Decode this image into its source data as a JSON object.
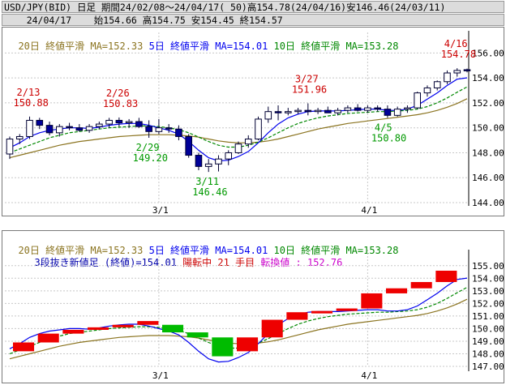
{
  "header": {
    "line1": "USD/JPY(BID) 日足 期間24/02/08～24/04/17( 50)高154.78(24/04/16)安146.46(24/03/11)",
    "line2": "    24/04/17    始154.66 高154.75 安154.45 終154.57"
  },
  "colors": {
    "ma20": "#8b7420",
    "ma5": "#0000ee",
    "ma10": "#008800",
    "candle_up": "#ffffff",
    "candle_down": "#000099",
    "brick_up": "#ee0000",
    "brick_down": "#00bb00",
    "annot_high": "#cc0000",
    "annot_low": "#009900",
    "reversal": "#cc00cc"
  },
  "top_legend": [
    {
      "text": "20日 終値平滑 MA=152.33",
      "color_key": "ma20"
    },
    {
      "text": "5日 終値平滑 MA=154.01",
      "color_key": "ma5"
    },
    {
      "text": "10日 終値平滑 MA=153.28",
      "color_key": "ma10"
    }
  ],
  "bottom_legend": [
    {
      "text": "20日 終値平滑 MA=152.33",
      "color_key": "ma20"
    },
    {
      "text": "5日 終値平滑 MA=154.01",
      "color_key": "ma5"
    },
    {
      "text": "10日 終値平滑 MA=153.28",
      "color_key": "ma10"
    }
  ],
  "bottom_info": {
    "part1": "3段抜き新値足 (終値)=154.01",
    "part2": "陽転中 21 手目",
    "part3": "転換値 : 152.76"
  },
  "chart_data": [
    {
      "type": "candlestick",
      "title": "USD/JPY(BID) 日足",
      "ylim": [
        144,
        157
      ],
      "yticks": [
        144.0,
        146.0,
        148.0,
        150.0,
        152.0,
        154.0,
        156.0
      ],
      "xtick_labels": [
        {
          "label": "3/1",
          "index": 15
        },
        {
          "label": "4/1",
          "index": 36
        }
      ],
      "candles": [
        {
          "o": 147.9,
          "h": 149.3,
          "l": 147.5,
          "c": 149.1
        },
        {
          "o": 149.1,
          "h": 149.5,
          "l": 148.7,
          "c": 149.3
        },
        {
          "o": 149.3,
          "h": 150.9,
          "l": 149.1,
          "c": 150.6
        },
        {
          "o": 150.6,
          "h": 150.8,
          "l": 149.9,
          "c": 150.2
        },
        {
          "o": 150.2,
          "h": 150.5,
          "l": 149.4,
          "c": 149.6
        },
        {
          "o": 149.6,
          "h": 150.3,
          "l": 149.3,
          "c": 150.1
        },
        {
          "o": 150.1,
          "h": 150.4,
          "l": 149.8,
          "c": 150.0
        },
        {
          "o": 150.0,
          "h": 150.3,
          "l": 149.7,
          "c": 149.8
        },
        {
          "o": 149.8,
          "h": 150.3,
          "l": 149.6,
          "c": 150.1
        },
        {
          "o": 150.1,
          "h": 150.5,
          "l": 149.9,
          "c": 150.3
        },
        {
          "o": 150.3,
          "h": 150.8,
          "l": 150.0,
          "c": 150.6
        },
        {
          "o": 150.6,
          "h": 150.83,
          "l": 150.1,
          "c": 150.4
        },
        {
          "o": 150.4,
          "h": 150.7,
          "l": 150.0,
          "c": 150.5
        },
        {
          "o": 150.5,
          "h": 150.8,
          "l": 150.0,
          "c": 150.1
        },
        {
          "o": 150.1,
          "h": 150.6,
          "l": 149.2,
          "c": 149.7
        },
        {
          "o": 149.7,
          "h": 150.7,
          "l": 149.5,
          "c": 150.0
        },
        {
          "o": 150.0,
          "h": 150.3,
          "l": 149.6,
          "c": 149.9
        },
        {
          "o": 149.9,
          "h": 150.2,
          "l": 149.0,
          "c": 149.3
        },
        {
          "o": 149.3,
          "h": 149.5,
          "l": 147.6,
          "c": 147.8
        },
        {
          "o": 147.8,
          "h": 148.0,
          "l": 146.6,
          "c": 146.9
        },
        {
          "o": 146.9,
          "h": 147.5,
          "l": 146.46,
          "c": 147.1
        },
        {
          "o": 147.1,
          "h": 147.8,
          "l": 146.5,
          "c": 147.5
        },
        {
          "o": 147.5,
          "h": 148.2,
          "l": 147.0,
          "c": 148.0
        },
        {
          "o": 148.0,
          "h": 148.9,
          "l": 147.9,
          "c": 148.7
        },
        {
          "o": 148.7,
          "h": 149.4,
          "l": 148.4,
          "c": 149.1
        },
        {
          "o": 149.1,
          "h": 150.9,
          "l": 149.0,
          "c": 150.7
        },
        {
          "o": 150.7,
          "h": 151.7,
          "l": 150.4,
          "c": 151.3
        },
        {
          "o": 151.3,
          "h": 151.8,
          "l": 150.6,
          "c": 151.2
        },
        {
          "o": 151.2,
          "h": 151.6,
          "l": 151.0,
          "c": 151.3
        },
        {
          "o": 151.3,
          "h": 151.6,
          "l": 151.1,
          "c": 151.4
        },
        {
          "o": 151.4,
          "h": 151.96,
          "l": 151.0,
          "c": 151.3
        },
        {
          "o": 151.3,
          "h": 151.6,
          "l": 151.1,
          "c": 151.4
        },
        {
          "o": 151.4,
          "h": 151.7,
          "l": 151.2,
          "c": 151.2
        },
        {
          "o": 151.2,
          "h": 151.6,
          "l": 151.0,
          "c": 151.4
        },
        {
          "o": 151.4,
          "h": 151.8,
          "l": 151.2,
          "c": 151.6
        },
        {
          "o": 151.6,
          "h": 151.9,
          "l": 151.3,
          "c": 151.4
        },
        {
          "o": 151.4,
          "h": 151.8,
          "l": 151.2,
          "c": 151.6
        },
        {
          "o": 151.6,
          "h": 151.8,
          "l": 151.3,
          "c": 151.5
        },
        {
          "o": 151.5,
          "h": 151.8,
          "l": 150.8,
          "c": 151.0
        },
        {
          "o": 151.0,
          "h": 151.7,
          "l": 150.9,
          "c": 151.5
        },
        {
          "o": 151.5,
          "h": 151.8,
          "l": 151.2,
          "c": 151.6
        },
        {
          "o": 151.6,
          "h": 152.9,
          "l": 151.5,
          "c": 152.8
        },
        {
          "o": 152.8,
          "h": 153.4,
          "l": 152.5,
          "c": 153.2
        },
        {
          "o": 153.2,
          "h": 153.8,
          "l": 153.0,
          "c": 153.7
        },
        {
          "o": 153.7,
          "h": 154.6,
          "l": 153.5,
          "c": 154.4
        },
        {
          "o": 154.4,
          "h": 154.78,
          "l": 154.1,
          "c": 154.6
        },
        {
          "o": 154.66,
          "h": 154.75,
          "l": 154.45,
          "c": 154.57
        }
      ],
      "ma5": [
        148.4,
        148.8,
        149.3,
        149.6,
        149.8,
        149.9,
        150.0,
        150.0,
        149.95,
        150.05,
        150.2,
        150.3,
        150.35,
        150.35,
        150.2,
        150.0,
        149.8,
        149.5,
        148.9,
        148.2,
        147.6,
        147.35,
        147.4,
        147.7,
        148.1,
        148.8,
        149.6,
        150.3,
        150.8,
        151.1,
        151.3,
        151.35,
        151.35,
        151.35,
        151.4,
        151.45,
        151.5,
        151.5,
        151.4,
        151.4,
        151.5,
        151.8,
        152.3,
        152.8,
        153.4,
        153.9,
        154.01
      ],
      "ma10": [
        148.0,
        148.3,
        148.6,
        148.9,
        149.2,
        149.4,
        149.6,
        149.7,
        149.8,
        149.9,
        150.0,
        150.05,
        150.1,
        150.15,
        150.15,
        150.1,
        150.0,
        149.85,
        149.6,
        149.25,
        148.9,
        148.6,
        148.45,
        148.45,
        148.6,
        148.85,
        149.2,
        149.6,
        150.0,
        150.35,
        150.6,
        150.8,
        150.95,
        151.05,
        151.15,
        151.2,
        151.25,
        151.3,
        151.3,
        151.35,
        151.4,
        151.5,
        151.7,
        152.0,
        152.4,
        152.85,
        153.28
      ],
      "ma20": [
        147.6,
        147.8,
        148.0,
        148.2,
        148.4,
        148.6,
        148.75,
        148.9,
        149.0,
        149.1,
        149.2,
        149.3,
        149.35,
        149.4,
        149.45,
        149.45,
        149.45,
        149.4,
        149.35,
        149.25,
        149.1,
        148.95,
        148.85,
        148.8,
        148.8,
        148.85,
        148.95,
        149.1,
        149.3,
        149.5,
        149.7,
        149.9,
        150.05,
        150.2,
        150.35,
        150.45,
        150.55,
        150.65,
        150.75,
        150.85,
        150.95,
        151.05,
        151.2,
        151.4,
        151.65,
        151.95,
        152.33
      ],
      "annotations": [
        {
          "date": "2/13",
          "value": "150.88",
          "index": 2,
          "price": 150.88,
          "kind": "high"
        },
        {
          "date": "2/26",
          "value": "150.83",
          "index": 11,
          "price": 150.83,
          "kind": "high"
        },
        {
          "date": "2/29",
          "value": "149.20",
          "index": 14,
          "price": 149.2,
          "kind": "low"
        },
        {
          "date": "3/11",
          "value": "146.46",
          "index": 20,
          "price": 146.46,
          "kind": "low"
        },
        {
          "date": "3/27",
          "value": "151.96",
          "index": 30,
          "price": 151.96,
          "kind": "high"
        },
        {
          "date": "4/5",
          "value": "150.80",
          "index": 38,
          "price": 150.8,
          "kind": "low"
        },
        {
          "date": "4/16",
          "value": "154.78",
          "index": 45,
          "price": 154.78,
          "kind": "high"
        }
      ]
    },
    {
      "type": "bar",
      "title": "3段抜き新値足 (終値)",
      "ylim": [
        147,
        155.5
      ],
      "yticks": [
        147.0,
        148.0,
        149.0,
        150.0,
        151.0,
        152.0,
        153.0,
        154.0,
        155.0
      ],
      "xtick_labels": [
        {
          "label": "3/1",
          "index": 15
        },
        {
          "label": "4/1",
          "index": 36
        }
      ],
      "bricks": [
        {
          "lo": 148.2,
          "hi": 148.9,
          "dir": "up"
        },
        {
          "lo": 148.9,
          "hi": 149.6,
          "dir": "up"
        },
        {
          "lo": 149.6,
          "hi": 149.9,
          "dir": "up"
        },
        {
          "lo": 149.9,
          "hi": 150.1,
          "dir": "up"
        },
        {
          "lo": 150.1,
          "hi": 150.3,
          "dir": "up"
        },
        {
          "lo": 150.3,
          "hi": 150.6,
          "dir": "up"
        },
        {
          "lo": 149.7,
          "hi": 150.3,
          "dir": "down"
        },
        {
          "lo": 149.3,
          "hi": 149.7,
          "dir": "down"
        },
        {
          "lo": 147.8,
          "hi": 149.3,
          "dir": "down"
        },
        {
          "lo": 148.2,
          "hi": 149.3,
          "dir": "up"
        },
        {
          "lo": 149.3,
          "hi": 150.7,
          "dir": "up"
        },
        {
          "lo": 150.7,
          "hi": 151.3,
          "dir": "up"
        },
        {
          "lo": 151.3,
          "hi": 151.4,
          "dir": "up"
        },
        {
          "lo": 151.4,
          "hi": 151.6,
          "dir": "up"
        },
        {
          "lo": 151.6,
          "hi": 152.8,
          "dir": "up"
        },
        {
          "lo": 152.8,
          "hi": 153.2,
          "dir": "up"
        },
        {
          "lo": 153.2,
          "hi": 153.7,
          "dir": "up"
        },
        {
          "lo": 153.7,
          "hi": 154.6,
          "dir": "up"
        }
      ]
    }
  ]
}
